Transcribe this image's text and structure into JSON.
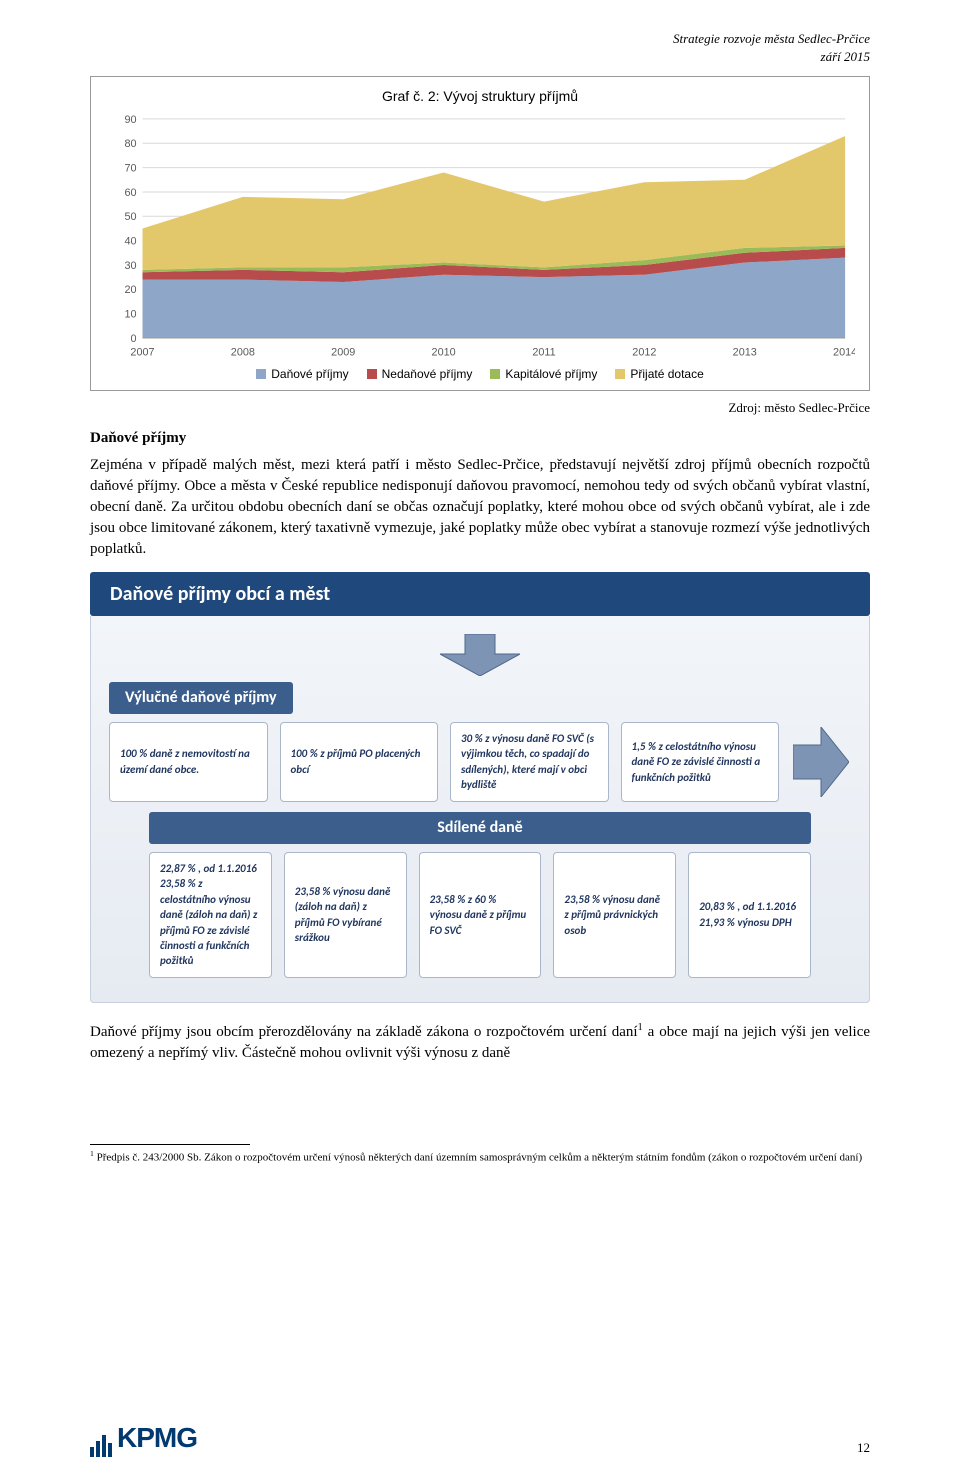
{
  "header": {
    "line1": "Strategie rozvoje města Sedlec-Prčice",
    "line2": "září 2015"
  },
  "chart": {
    "type": "stacked-area",
    "title": "Graf č. 2: Vývoj struktury příjmů",
    "x_categories": [
      "2007",
      "2008",
      "2009",
      "2010",
      "2011",
      "2012",
      "2013",
      "2014"
    ],
    "series": [
      {
        "name": "Daňové příjmy",
        "color": "#8ea6c8",
        "values": [
          24,
          24,
          23,
          26,
          25,
          26,
          31,
          33
        ]
      },
      {
        "name": "Nedaňové příjmy",
        "color": "#b84b4b",
        "values": [
          3,
          4,
          4,
          4,
          3,
          4,
          4,
          4
        ]
      },
      {
        "name": "Kapitálové příjmy",
        "color": "#9bbb59",
        "values": [
          1,
          1,
          2,
          1,
          1,
          2,
          2,
          1
        ]
      },
      {
        "name": "Přijaté dotace",
        "color": "#e3c76b",
        "values": [
          17,
          29,
          28,
          37,
          27,
          32,
          28,
          45
        ]
      }
    ],
    "y_ticks": [
      0,
      10,
      20,
      30,
      40,
      50,
      60,
      70,
      80,
      90
    ],
    "ylim": [
      0,
      90
    ],
    "background_color": "#ffffff",
    "grid_color": "#d9d9d9",
    "axis_text_color": "#595959",
    "axis_fontsize": 11,
    "title_fontsize": 14
  },
  "source": "Zdroj: město Sedlec-Prčice",
  "section_heading": "Daňové příjmy",
  "paragraph1": "Zejména v případě malých měst, mezi která patří i město Sedlec-Prčice, představují největší zdroj příjmů obecních rozpočtů daňové příjmy. Obce a města v České republice nedisponují daňovou pravomocí, nemohou tedy od svých občanů vybírat vlastní, obecní daně. Za určitou obdobu obecních daní se občas označují poplatky, které mohou obce od svých občanů vybírat, ale i zde jsou obce limitované zákonem, který taxativně vymezuje, jaké poplatky může obec vybírat a stanovuje rozmezí výše jednotlivých poplatků.",
  "diagram": {
    "title": "Daňové příjmy obcí a měst",
    "arrow_fill": "#7e94b5",
    "arrow_stroke": "#50678a",
    "section1": {
      "title": "Výlučné daňové příjmy",
      "cards": [
        "100 % daně z nemovitostí na území dané obce.",
        "100 % z příjmů PO placených obcí",
        "30 % z výnosu daně FO SVČ (s výjimkou těch, co spadají do sdílených), které mají v obci bydliště",
        "1,5 % z celostátního výnosu daně FO ze závislé činnosti a funkčních požitků"
      ]
    },
    "section2": {
      "title": "Sdílené daně",
      "cards": [
        "22,87 % , od 1.1.2016 23,58 % z celostátního výnosu daně (záloh na daň) z příjmů FO ze závislé činnosti a funkčních požitků",
        "23,58 % výnosu daně (záloh na daň) z příjmů FO vybírané srážkou",
        "23,58 % z 60 % výnosu daně z příjmu FO SVČ",
        "23,58 % výnosu daně z příjmů právnických osob",
        "20,83 % , od 1.1.2016 21,93 % výnosu DPH"
      ]
    },
    "card_bg": "#ffffff",
    "card_border": "#aab6c9",
    "card_text_color": "#1f355e",
    "subtitle_bg": "#3b5e8c",
    "title_bg": "#1f497d",
    "body_bg_top": "#f2f5f9",
    "body_bg_bottom": "#e6ebf2"
  },
  "paragraph2_a": "Daňové příjmy jsou obcím přerozdělovány na základě zákona o rozpočtovém určení daní",
  "paragraph2_sup": "1",
  "paragraph2_b": " a obce mají na jejich výši jen velice omezený a nepřímý vliv. Částečně mohou ovlivnit výši výnosu z daně",
  "footnote_marker": "1",
  "footnote_text": " Předpis č. 243/2000 Sb. Zákon o rozpočtovém určení výnosů některých daní územním samosprávným celkům a některým státním fondům (zákon o rozpočtovém určení daní)",
  "logo_text": "KPMG",
  "page_number": "12"
}
